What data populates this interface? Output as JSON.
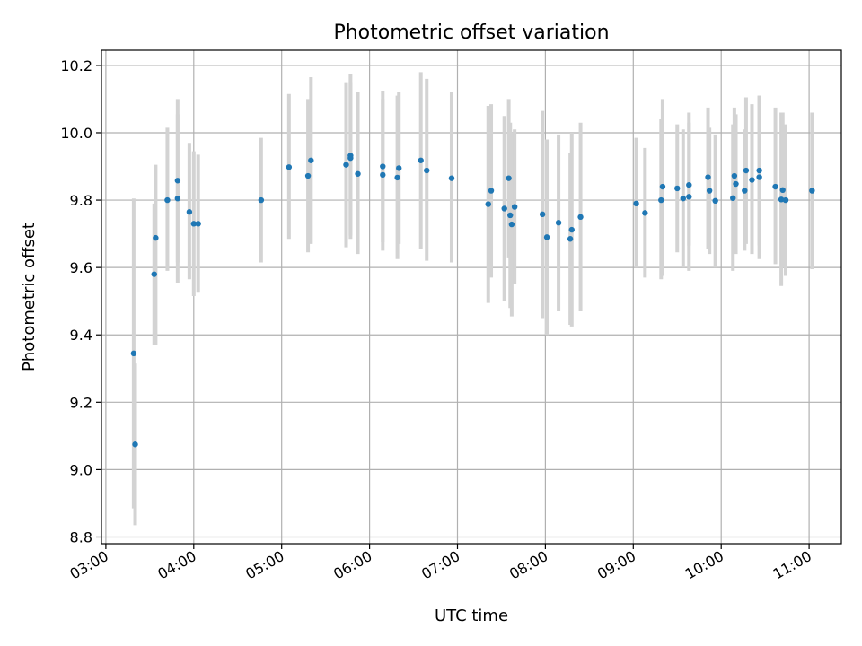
{
  "chart_data": {
    "type": "scatter",
    "title": "Photometric offset variation",
    "xlabel": "UTC time",
    "ylabel": "Photometric offset",
    "xlim": [
      "02:57",
      "11:22"
    ],
    "ylim": [
      8.78,
      10.245
    ],
    "x_ticks": [
      "03:00",
      "04:00",
      "05:00",
      "06:00",
      "07:00",
      "08:00",
      "09:00",
      "10:00",
      "11:00"
    ],
    "y_ticks": [
      8.8,
      9.0,
      9.2,
      9.4,
      9.6,
      9.8,
      10.0,
      10.2
    ],
    "grid": true,
    "colors": {
      "points": "#1f77b4",
      "errorbars": "#d3d3d3",
      "grid": "#b0b0b0"
    },
    "series": [
      {
        "points": [
          {
            "x": "03:19",
            "y": 9.345,
            "lo": 8.885,
            "hi": 9.805
          },
          {
            "x": "03:20",
            "y": 9.075,
            "lo": 8.835,
            "hi": 9.315
          },
          {
            "x": "03:33",
            "y": 9.58,
            "lo": 9.37,
            "hi": 9.79
          },
          {
            "x": "03:34",
            "y": 9.688,
            "lo": 9.37,
            "hi": 9.905
          },
          {
            "x": "03:42",
            "y": 9.8,
            "lo": 9.59,
            "hi": 10.015
          },
          {
            "x": "03:49",
            "y": 9.858,
            "lo": 9.615,
            "hi": 10.1
          },
          {
            "x": "03:49",
            "y": 9.805,
            "lo": 9.555,
            "hi": 10.055
          },
          {
            "x": "03:57",
            "y": 9.765,
            "lo": 9.565,
            "hi": 9.97
          },
          {
            "x": "04:00",
            "y": 9.73,
            "lo": 9.515,
            "hi": 9.945
          },
          {
            "x": "04:03",
            "y": 9.73,
            "lo": 9.525,
            "hi": 9.935
          },
          {
            "x": "04:46",
            "y": 9.8,
            "lo": 9.615,
            "hi": 9.985
          },
          {
            "x": "05:05",
            "y": 9.898,
            "lo": 9.685,
            "hi": 10.115
          },
          {
            "x": "05:18",
            "y": 9.872,
            "lo": 9.645,
            "hi": 10.1
          },
          {
            "x": "05:20",
            "y": 9.918,
            "lo": 9.67,
            "hi": 10.165
          },
          {
            "x": "05:44",
            "y": 9.905,
            "lo": 9.66,
            "hi": 10.15
          },
          {
            "x": "05:47",
            "y": 9.932,
            "lo": 9.685,
            "hi": 10.175
          },
          {
            "x": "05:47",
            "y": 9.925,
            "lo": 9.695,
            "hi": 10.15
          },
          {
            "x": "05:52",
            "y": 9.878,
            "lo": 9.64,
            "hi": 10.12
          },
          {
            "x": "06:09",
            "y": 9.9,
            "lo": 9.675,
            "hi": 10.125
          },
          {
            "x": "06:09",
            "y": 9.875,
            "lo": 9.65,
            "hi": 10.1
          },
          {
            "x": "06:19",
            "y": 9.867,
            "lo": 9.625,
            "hi": 10.11
          },
          {
            "x": "06:20",
            "y": 9.895,
            "lo": 9.67,
            "hi": 10.12
          },
          {
            "x": "06:35",
            "y": 9.918,
            "lo": 9.655,
            "hi": 10.18
          },
          {
            "x": "06:39",
            "y": 9.888,
            "lo": 9.62,
            "hi": 10.16
          },
          {
            "x": "06:56",
            "y": 9.865,
            "lo": 9.615,
            "hi": 10.12
          },
          {
            "x": "07:21",
            "y": 9.788,
            "lo": 9.495,
            "hi": 10.08
          },
          {
            "x": "07:23",
            "y": 9.828,
            "lo": 9.57,
            "hi": 10.085
          },
          {
            "x": "07:32",
            "y": 9.775,
            "lo": 9.5,
            "hi": 10.05
          },
          {
            "x": "07:35",
            "y": 9.865,
            "lo": 9.63,
            "hi": 10.1
          },
          {
            "x": "07:36",
            "y": 9.755,
            "lo": 9.48,
            "hi": 10.03
          },
          {
            "x": "07:37",
            "y": 9.728,
            "lo": 9.455,
            "hi": 10.0
          },
          {
            "x": "07:39",
            "y": 9.78,
            "lo": 9.55,
            "hi": 10.01
          },
          {
            "x": "07:58",
            "y": 9.758,
            "lo": 9.45,
            "hi": 10.065
          },
          {
            "x": "08:01",
            "y": 9.69,
            "lo": 9.4,
            "hi": 9.98
          },
          {
            "x": "08:09",
            "y": 9.733,
            "lo": 9.47,
            "hi": 9.995
          },
          {
            "x": "08:17",
            "y": 9.685,
            "lo": 9.43,
            "hi": 9.94
          },
          {
            "x": "08:18",
            "y": 9.712,
            "lo": 9.425,
            "hi": 10.0
          },
          {
            "x": "08:24",
            "y": 9.75,
            "lo": 9.47,
            "hi": 10.03
          },
          {
            "x": "09:02",
            "y": 9.79,
            "lo": 9.6,
            "hi": 9.985
          },
          {
            "x": "09:08",
            "y": 9.762,
            "lo": 9.57,
            "hi": 9.955
          },
          {
            "x": "09:19",
            "y": 9.8,
            "lo": 9.565,
            "hi": 10.04
          },
          {
            "x": "09:20",
            "y": 9.84,
            "lo": 9.575,
            "hi": 10.1
          },
          {
            "x": "09:30",
            "y": 9.835,
            "lo": 9.645,
            "hi": 10.025
          },
          {
            "x": "09:34",
            "y": 9.805,
            "lo": 9.6,
            "hi": 10.01
          },
          {
            "x": "09:38",
            "y": 9.845,
            "lo": 9.665,
            "hi": 10.03
          },
          {
            "x": "09:38",
            "y": 9.81,
            "lo": 9.59,
            "hi": 10.06
          },
          {
            "x": "09:51",
            "y": 9.868,
            "lo": 9.655,
            "hi": 10.075
          },
          {
            "x": "09:52",
            "y": 9.828,
            "lo": 9.64,
            "hi": 10.015
          },
          {
            "x": "09:56",
            "y": 9.798,
            "lo": 9.6,
            "hi": 9.995
          },
          {
            "x": "10:08",
            "y": 9.806,
            "lo": 9.59,
            "hi": 10.025
          },
          {
            "x": "10:09",
            "y": 9.872,
            "lo": 9.655,
            "hi": 10.075
          },
          {
            "x": "10:10",
            "y": 9.848,
            "lo": 9.64,
            "hi": 10.055
          },
          {
            "x": "10:16",
            "y": 9.828,
            "lo": 9.65,
            "hi": 10.01
          },
          {
            "x": "10:17",
            "y": 9.888,
            "lo": 9.67,
            "hi": 10.105
          },
          {
            "x": "10:21",
            "y": 9.86,
            "lo": 9.64,
            "hi": 10.085
          },
          {
            "x": "10:26",
            "y": 9.888,
            "lo": 9.665,
            "hi": 10.11
          },
          {
            "x": "10:26",
            "y": 9.868,
            "lo": 9.625,
            "hi": 10.11
          },
          {
            "x": "10:37",
            "y": 9.84,
            "lo": 9.61,
            "hi": 10.075
          },
          {
            "x": "10:41",
            "y": 9.802,
            "lo": 9.545,
            "hi": 10.06
          },
          {
            "x": "10:42",
            "y": 9.83,
            "lo": 9.6,
            "hi": 10.06
          },
          {
            "x": "10:44",
            "y": 9.8,
            "lo": 9.575,
            "hi": 10.025
          },
          {
            "x": "11:02",
            "y": 9.828,
            "lo": 9.595,
            "hi": 10.06
          }
        ]
      }
    ]
  }
}
